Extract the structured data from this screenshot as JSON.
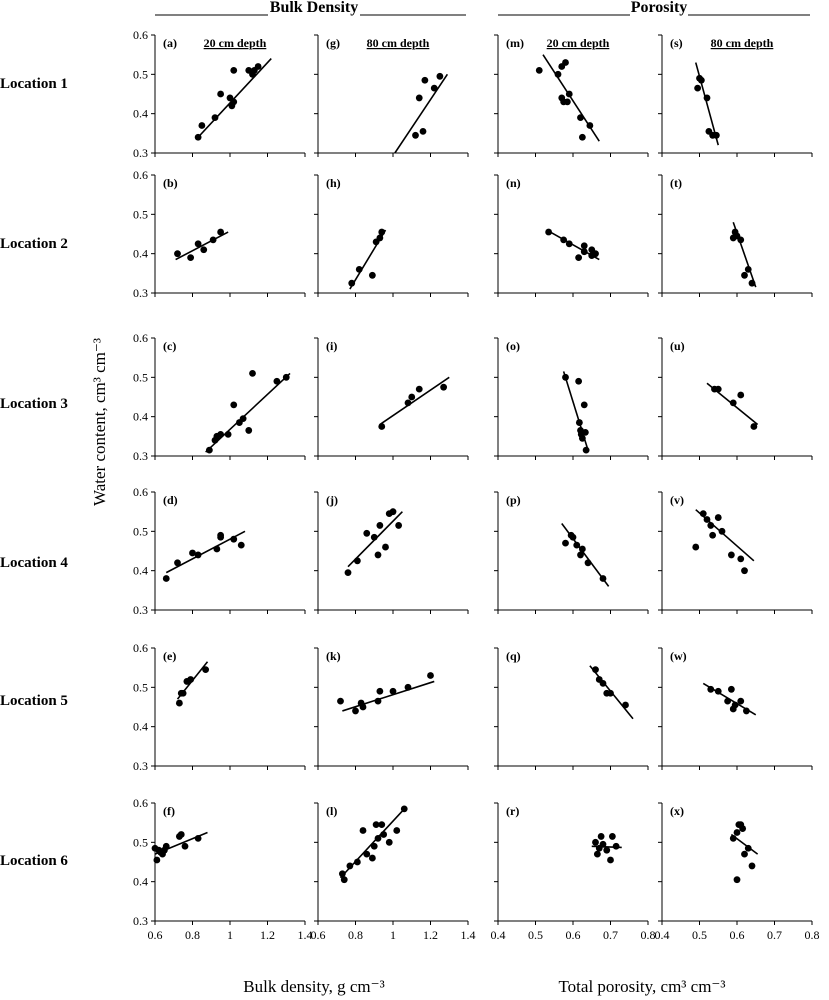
{
  "figure": {
    "group_titles": [
      "Bulk Density",
      "Porosity"
    ],
    "depth_labels": [
      "20 cm depth",
      "80 cm depth",
      "20 cm depth",
      "80 cm depth"
    ],
    "row_labels": [
      "Location 1",
      "Location 2",
      "Location 3",
      "Location 4",
      "Location 5",
      "Location 6"
    ],
    "y_axis_title": "Water content, cm³ cm⁻³",
    "x_axis_titles": [
      "Bulk density, g cm⁻³",
      "Total porosity, cm³ cm⁻³"
    ],
    "y_ticks": [
      "0.3",
      "0.4",
      "0.5",
      "0.6"
    ],
    "x_ticks_bulk": [
      "0.6",
      "0.8",
      "1",
      "1.2",
      "1.4"
    ],
    "x_ticks_porosity": [
      "0.4",
      "0.5",
      "0.6",
      "0.7",
      "0.8"
    ]
  },
  "chart_data": [
    {
      "type": "scatter",
      "panel": "(a)",
      "xlim": [
        0.6,
        1.4
      ],
      "ylim": [
        0.3,
        0.6
      ],
      "x": [
        0.83,
        0.85,
        0.92,
        0.95,
        1.0,
        1.01,
        1.02,
        1.02,
        1.1,
        1.12,
        1.13,
        1.15
      ],
      "y": [
        0.34,
        0.37,
        0.39,
        0.45,
        0.44,
        0.42,
        0.43,
        0.51,
        0.51,
        0.5,
        0.51,
        0.52
      ],
      "fit": [
        [
          0.82,
          0.335
        ],
        [
          1.22,
          0.54
        ]
      ]
    },
    {
      "type": "scatter",
      "panel": "(g)",
      "xlim": [
        0.6,
        1.4
      ],
      "ylim": [
        0.3,
        0.6
      ],
      "x": [
        1.12,
        1.14,
        1.16,
        1.17,
        1.22,
        1.25
      ],
      "y": [
        0.345,
        0.44,
        0.355,
        0.485,
        0.465,
        0.495
      ],
      "fit": [
        [
          1.01,
          0.3
        ],
        [
          1.29,
          0.5
        ]
      ]
    },
    {
      "type": "scatter",
      "panel": "(m)",
      "xlim": [
        0.4,
        0.8
      ],
      "ylim": [
        0.3,
        0.6
      ],
      "x": [
        0.51,
        0.56,
        0.57,
        0.57,
        0.575,
        0.58,
        0.585,
        0.59,
        0.62,
        0.625,
        0.645
      ],
      "y": [
        0.51,
        0.5,
        0.52,
        0.44,
        0.43,
        0.53,
        0.43,
        0.45,
        0.39,
        0.34,
        0.37
      ],
      "fit": [
        [
          0.52,
          0.55
        ],
        [
          0.67,
          0.33
        ]
      ]
    },
    {
      "type": "scatter",
      "panel": "(s)",
      "xlim": [
        0.4,
        0.8
      ],
      "ylim": [
        0.3,
        0.6
      ],
      "x": [
        0.495,
        0.5,
        0.505,
        0.52,
        0.525,
        0.535,
        0.545
      ],
      "y": [
        0.465,
        0.49,
        0.485,
        0.44,
        0.355,
        0.345,
        0.345
      ],
      "fit": [
        [
          0.49,
          0.53
        ],
        [
          0.55,
          0.32
        ]
      ]
    },
    {
      "type": "scatter",
      "panel": "(b)",
      "xlim": [
        0.6,
        1.4
      ],
      "ylim": [
        0.3,
        0.6
      ],
      "x": [
        0.72,
        0.79,
        0.83,
        0.86,
        0.91,
        0.95
      ],
      "y": [
        0.4,
        0.39,
        0.425,
        0.41,
        0.435,
        0.455
      ],
      "fit": [
        [
          0.71,
          0.385
        ],
        [
          0.99,
          0.455
        ]
      ]
    },
    {
      "type": "scatter",
      "panel": "(h)",
      "xlim": [
        0.6,
        1.4
      ],
      "ylim": [
        0.3,
        0.6
      ],
      "x": [
        0.78,
        0.82,
        0.89,
        0.91,
        0.93,
        0.94
      ],
      "y": [
        0.325,
        0.36,
        0.345,
        0.43,
        0.44,
        0.455
      ],
      "fit": [
        [
          0.77,
          0.31
        ],
        [
          0.96,
          0.46
        ]
      ]
    },
    {
      "type": "scatter",
      "panel": "(n)",
      "xlim": [
        0.4,
        0.8
      ],
      "ylim": [
        0.3,
        0.6
      ],
      "x": [
        0.535,
        0.575,
        0.59,
        0.615,
        0.63,
        0.63,
        0.65,
        0.65,
        0.66
      ],
      "y": [
        0.455,
        0.435,
        0.425,
        0.39,
        0.42,
        0.405,
        0.41,
        0.395,
        0.4
      ],
      "fit": [
        [
          0.53,
          0.46
        ],
        [
          0.67,
          0.385
        ]
      ]
    },
    {
      "type": "scatter",
      "panel": "(t)",
      "xlim": [
        0.4,
        0.8
      ],
      "ylim": [
        0.3,
        0.6
      ],
      "x": [
        0.59,
        0.595,
        0.6,
        0.61,
        0.62,
        0.63,
        0.64
      ],
      "y": [
        0.44,
        0.455,
        0.445,
        0.435,
        0.345,
        0.36,
        0.325
      ],
      "fit": [
        [
          0.59,
          0.48
        ],
        [
          0.65,
          0.315
        ]
      ]
    },
    {
      "type": "scatter",
      "panel": "(c)",
      "xlim": [
        0.6,
        1.4
      ],
      "ylim": [
        0.3,
        0.6
      ],
      "x": [
        0.89,
        0.92,
        0.93,
        0.95,
        0.99,
        1.02,
        1.05,
        1.07,
        1.1,
        1.12,
        1.25,
        1.3
      ],
      "y": [
        0.315,
        0.34,
        0.35,
        0.355,
        0.355,
        0.43,
        0.385,
        0.395,
        0.365,
        0.51,
        0.49,
        0.5
      ],
      "fit": [
        [
          0.87,
          0.31
        ],
        [
          1.32,
          0.51
        ]
      ]
    },
    {
      "type": "scatter",
      "panel": "(i)",
      "xlim": [
        0.6,
        1.4
      ],
      "ylim": [
        0.3,
        0.6
      ],
      "x": [
        0.94,
        1.08,
        1.1,
        1.14,
        1.27
      ],
      "y": [
        0.375,
        0.435,
        0.45,
        0.47,
        0.475
      ],
      "fit": [
        [
          0.93,
          0.38
        ],
        [
          1.3,
          0.5
        ]
      ]
    },
    {
      "type": "scatter",
      "panel": "(o)",
      "xlim": [
        0.4,
        0.8
      ],
      "ylim": [
        0.3,
        0.6
      ],
      "x": [
        0.58,
        0.615,
        0.617,
        0.62,
        0.622,
        0.625,
        0.63,
        0.633,
        0.635
      ],
      "y": [
        0.5,
        0.49,
        0.385,
        0.365,
        0.355,
        0.345,
        0.43,
        0.36,
        0.315
      ],
      "fit": [
        [
          0.575,
          0.515
        ],
        [
          0.64,
          0.315
        ]
      ]
    },
    {
      "type": "scatter",
      "panel": "(u)",
      "xlim": [
        0.4,
        0.8
      ],
      "ylim": [
        0.3,
        0.6
      ],
      "x": [
        0.54,
        0.55,
        0.59,
        0.61,
        0.645
      ],
      "y": [
        0.47,
        0.47,
        0.435,
        0.455,
        0.375
      ],
      "fit": [
        [
          0.52,
          0.485
        ],
        [
          0.655,
          0.38
        ]
      ]
    },
    {
      "type": "scatter",
      "panel": "(d)",
      "xlim": [
        0.6,
        1.4
      ],
      "ylim": [
        0.3,
        0.6
      ],
      "x": [
        0.66,
        0.72,
        0.8,
        0.83,
        0.93,
        0.95,
        0.95,
        1.02,
        1.06
      ],
      "y": [
        0.38,
        0.42,
        0.445,
        0.44,
        0.455,
        0.485,
        0.49,
        0.48,
        0.465
      ],
      "fit": [
        [
          0.66,
          0.395
        ],
        [
          1.08,
          0.5
        ]
      ]
    },
    {
      "type": "scatter",
      "panel": "(j)",
      "xlim": [
        0.6,
        1.4
      ],
      "ylim": [
        0.3,
        0.6
      ],
      "x": [
        0.76,
        0.81,
        0.86,
        0.9,
        0.92,
        0.93,
        0.96,
        0.98,
        1.0,
        1.03
      ],
      "y": [
        0.395,
        0.425,
        0.495,
        0.485,
        0.44,
        0.515,
        0.46,
        0.545,
        0.55,
        0.515
      ],
      "fit": [
        [
          0.76,
          0.41
        ],
        [
          1.05,
          0.55
        ]
      ]
    },
    {
      "type": "scatter",
      "panel": "(p)",
      "xlim": [
        0.4,
        0.8
      ],
      "ylim": [
        0.3,
        0.6
      ],
      "x": [
        0.58,
        0.595,
        0.6,
        0.61,
        0.62,
        0.625,
        0.64,
        0.68
      ],
      "y": [
        0.47,
        0.49,
        0.485,
        0.465,
        0.44,
        0.455,
        0.42,
        0.38
      ],
      "fit": [
        [
          0.57,
          0.52
        ],
        [
          0.695,
          0.36
        ]
      ]
    },
    {
      "type": "scatter",
      "panel": "(v)",
      "xlim": [
        0.4,
        0.8
      ],
      "ylim": [
        0.3,
        0.6
      ],
      "x": [
        0.49,
        0.51,
        0.52,
        0.53,
        0.535,
        0.55,
        0.56,
        0.585,
        0.61,
        0.62
      ],
      "y": [
        0.46,
        0.545,
        0.53,
        0.515,
        0.49,
        0.535,
        0.5,
        0.44,
        0.43,
        0.4
      ],
      "fit": [
        [
          0.49,
          0.555
        ],
        [
          0.645,
          0.425
        ]
      ]
    },
    {
      "type": "scatter",
      "panel": "(e)",
      "xlim": [
        0.6,
        1.4
      ],
      "ylim": [
        0.3,
        0.6
      ],
      "x": [
        0.73,
        0.74,
        0.75,
        0.77,
        0.79,
        0.87
      ],
      "y": [
        0.46,
        0.485,
        0.485,
        0.515,
        0.52,
        0.545
      ],
      "fit": [
        [
          0.72,
          0.47
        ],
        [
          0.88,
          0.565
        ]
      ]
    },
    {
      "type": "scatter",
      "panel": "(k)",
      "xlim": [
        0.6,
        1.4
      ],
      "ylim": [
        0.3,
        0.6
      ],
      "x": [
        0.72,
        0.8,
        0.83,
        0.84,
        0.92,
        0.93,
        1.0,
        1.08,
        1.2
      ],
      "y": [
        0.465,
        0.44,
        0.46,
        0.45,
        0.465,
        0.49,
        0.49,
        0.5,
        0.53
      ],
      "fit": [
        [
          0.73,
          0.44
        ],
        [
          1.22,
          0.515
        ]
      ]
    },
    {
      "type": "scatter",
      "panel": "(q)",
      "xlim": [
        0.4,
        0.8
      ],
      "ylim": [
        0.3,
        0.6
      ],
      "x": [
        0.66,
        0.67,
        0.68,
        0.69,
        0.7,
        0.74
      ],
      "y": [
        0.545,
        0.52,
        0.51,
        0.485,
        0.485,
        0.455
      ],
      "fit": [
        [
          0.645,
          0.555
        ],
        [
          0.76,
          0.42
        ]
      ]
    },
    {
      "type": "scatter",
      "panel": "(w)",
      "xlim": [
        0.4,
        0.8
      ],
      "ylim": [
        0.3,
        0.6
      ],
      "x": [
        0.53,
        0.55,
        0.575,
        0.585,
        0.59,
        0.595,
        0.61,
        0.625
      ],
      "y": [
        0.495,
        0.49,
        0.465,
        0.495,
        0.445,
        0.455,
        0.465,
        0.44
      ],
      "fit": [
        [
          0.51,
          0.51
        ],
        [
          0.65,
          0.43
        ]
      ]
    },
    {
      "type": "scatter",
      "panel": "(f)",
      "xlim": [
        0.6,
        1.4
      ],
      "ylim": [
        0.3,
        0.6
      ],
      "x": [
        0.6,
        0.61,
        0.62,
        0.63,
        0.64,
        0.65,
        0.66,
        0.73,
        0.74,
        0.76,
        0.83
      ],
      "y": [
        0.485,
        0.455,
        0.48,
        0.475,
        0.47,
        0.48,
        0.49,
        0.515,
        0.52,
        0.49,
        0.51
      ],
      "fit": [
        [
          0.6,
          0.47
        ],
        [
          0.88,
          0.525
        ]
      ]
    },
    {
      "type": "scatter",
      "panel": "(l)",
      "xlim": [
        0.6,
        1.4
      ],
      "ylim": [
        0.3,
        0.6
      ],
      "x": [
        0.73,
        0.74,
        0.77,
        0.81,
        0.84,
        0.86,
        0.89,
        0.9,
        0.91,
        0.92,
        0.94,
        0.95,
        0.98,
        1.02,
        1.06
      ],
      "y": [
        0.42,
        0.405,
        0.44,
        0.45,
        0.53,
        0.47,
        0.46,
        0.49,
        0.545,
        0.51,
        0.545,
        0.52,
        0.5,
        0.53,
        0.585
      ],
      "fit": [
        [
          0.72,
          0.41
        ],
        [
          1.07,
          0.59
        ]
      ]
    },
    {
      "type": "scatter",
      "panel": "(r)",
      "xlim": [
        0.4,
        0.8
      ],
      "ylim": [
        0.3,
        0.6
      ],
      "x": [
        0.66,
        0.665,
        0.67,
        0.675,
        0.68,
        0.69,
        0.7,
        0.705,
        0.715
      ],
      "y": [
        0.5,
        0.47,
        0.485,
        0.515,
        0.495,
        0.48,
        0.455,
        0.515,
        0.49
      ],
      "fit": [
        [
          0.65,
          0.49
        ],
        [
          0.73,
          0.487
        ]
      ]
    },
    {
      "type": "scatter",
      "panel": "(x)",
      "xlim": [
        0.4,
        0.8
      ],
      "ylim": [
        0.3,
        0.6
      ],
      "x": [
        0.59,
        0.6,
        0.605,
        0.61,
        0.615,
        0.62,
        0.63,
        0.64,
        0.6
      ],
      "y": [
        0.51,
        0.525,
        0.545,
        0.545,
        0.535,
        0.47,
        0.485,
        0.44,
        0.405
      ],
      "fit": [
        [
          0.585,
          0.52
        ],
        [
          0.655,
          0.47
        ]
      ]
    }
  ]
}
